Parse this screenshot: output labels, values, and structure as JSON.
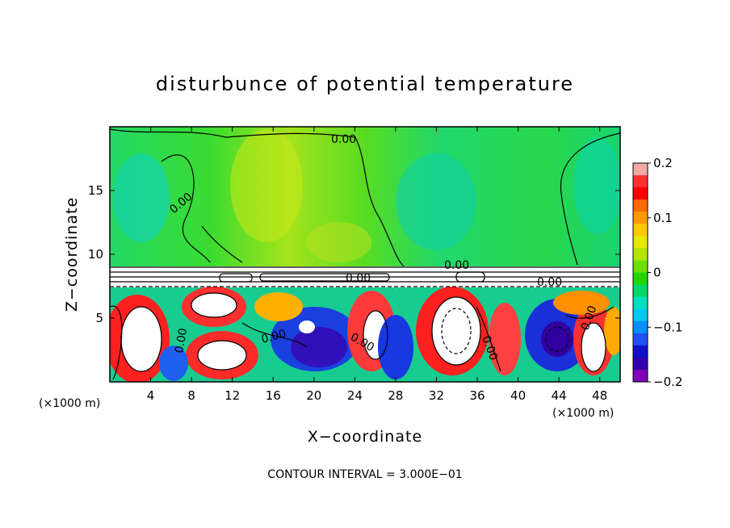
{
  "chart_data": {
    "type": "heatmap",
    "title": "disturbunce of potential temperature",
    "xlabel": "X−coordinate",
    "ylabel": "Z−coordinate",
    "x_scale_note": "(×1000 m)",
    "x_scale_note_right": "(×1000 m)",
    "footer": "CONTOUR INTERVAL = 3.000E−01",
    "xlim": [
      0,
      50
    ],
    "ylim": [
      0,
      20
    ],
    "x_ticks": [
      4,
      8,
      12,
      16,
      20,
      24,
      28,
      32,
      36,
      40,
      44,
      48
    ],
    "x_tick_labels": [
      "4",
      "8",
      "12",
      "16",
      "20",
      "24",
      "28",
      "32",
      "36",
      "40",
      "44",
      "48"
    ],
    "y_ticks": [
      5,
      10,
      15
    ],
    "y_tick_labels": [
      "5",
      "10",
      "15"
    ],
    "colorbar": {
      "min": -0.2,
      "max": 0.2,
      "ticks": [
        0.2,
        0.1,
        0,
        -0.1,
        -0.2
      ],
      "tick_labels": [
        "0.2",
        "0.1",
        "0",
        "−0.1",
        "−0.2"
      ],
      "colors": [
        "#f4a8a8",
        "#ff3030",
        "#ff0000",
        "#ff6a00",
        "#ff9a00",
        "#ffc800",
        "#e8e800",
        "#b4e400",
        "#6ee000",
        "#20d800",
        "#00d86a",
        "#00e0c0",
        "#00c8f0",
        "#0090ff",
        "#2050f0",
        "#1010c8",
        "#3000b0",
        "#8000b8"
      ]
    },
    "contour_labels": [
      "0.00",
      "0.00",
      "0.00",
      "0.00",
      "0.00",
      "0.00",
      "0.00",
      "0.00",
      "0.00",
      "0.00"
    ],
    "grid": false
  }
}
